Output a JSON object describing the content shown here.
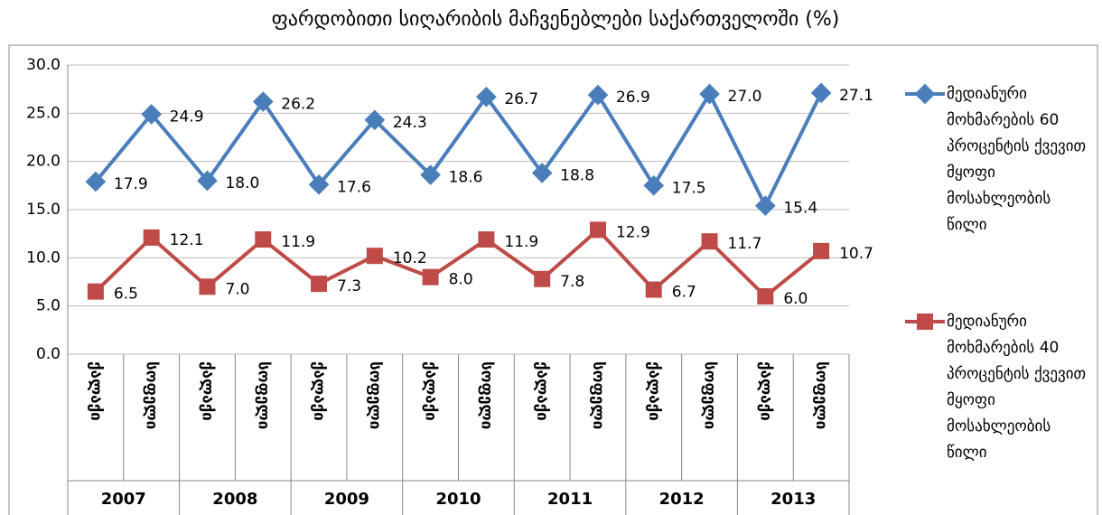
{
  "chart_data": {
    "type": "line",
    "title": "ფარდობითი სიღარიბის მაჩვენებლები საქართველოში  (%)",
    "categories": [
      "ქალაქი",
      "სოფელი",
      "ქალაქი",
      "სოფელი",
      "ქალაქი",
      "სოფელი",
      "ქალაქი",
      "სოფელი",
      "ქალაქი",
      "სოფელი",
      "ქალაქი",
      "სოფელი",
      "ქალაქი",
      "სოფელი"
    ],
    "groups": [
      "2007",
      "2008",
      "2009",
      "2010",
      "2011",
      "2012",
      "2013"
    ],
    "series": [
      {
        "name": "მედიანური მოხმარების 60 პროცენტის ქვევით მყოფი მოსახლეობის წილი",
        "color": "#4a7ebb",
        "values": [
          17.9,
          24.9,
          18.0,
          26.2,
          17.6,
          24.3,
          18.6,
          26.7,
          18.8,
          26.9,
          17.5,
          27.0,
          15.4,
          27.1
        ],
        "value_labels": [
          "17.9",
          "24.9",
          "18.0",
          "26.2",
          "17.6",
          "24.3",
          "18.6",
          "26.7",
          "18.8",
          "26.9",
          "17.5",
          "27.0",
          "15.4",
          "27.1"
        ]
      },
      {
        "name": "მედიანური მოხმარების 40 პროცენტის ქვევით მყოფი მოსახლეობის წილი",
        "color": "#be4b48",
        "values": [
          6.5,
          12.1,
          7.0,
          11.9,
          7.3,
          10.2,
          8.0,
          11.9,
          7.8,
          12.9,
          6.7,
          11.7,
          6.0,
          10.7
        ],
        "value_labels": [
          "6.5",
          "12.1",
          "7.0",
          "11.9",
          "7.3",
          "10.2",
          "8.0",
          "11.9",
          "7.8",
          "12.9",
          "6.7",
          "11.7",
          "6.0",
          "10.7"
        ]
      }
    ],
    "ylim": [
      0,
      30
    ],
    "yticks": [
      {
        "value": 0,
        "label": "0.0"
      },
      {
        "value": 5,
        "label": "5.0"
      },
      {
        "value": 10,
        "label": "10.0"
      },
      {
        "value": 15,
        "label": "15.0"
      },
      {
        "value": 20,
        "label": "20.0"
      },
      {
        "value": 25,
        "label": "25.0"
      },
      {
        "value": 30,
        "label": "30.0"
      }
    ],
    "grid": true,
    "legend": "right"
  }
}
